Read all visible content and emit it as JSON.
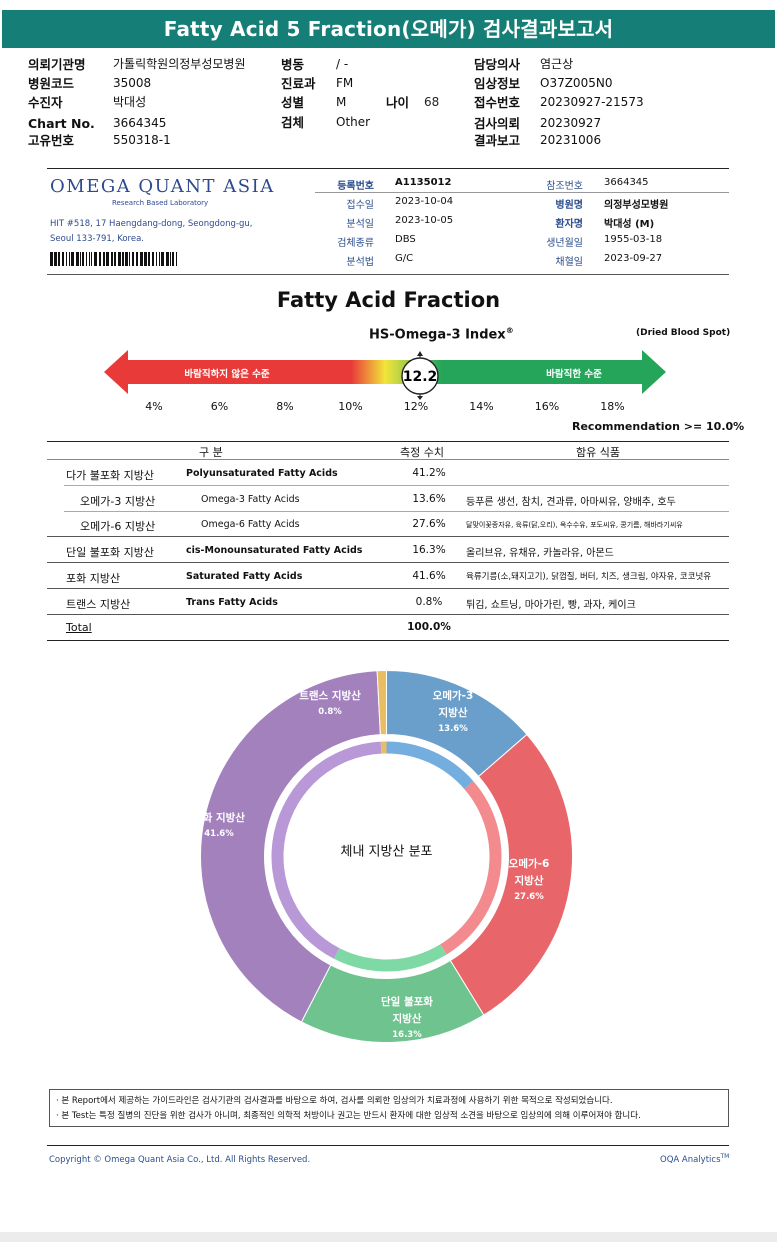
{
  "header": {
    "title": "Fatty Acid 5 Fraction(오메가) 검사결과보고서"
  },
  "patient_info": {
    "col1": [
      {
        "label": "의뢰기관명",
        "value": "가톨릭학원의정부성모병원"
      },
      {
        "label": "병원코드",
        "value": "35008"
      },
      {
        "label": "수진자",
        "value": "박대성"
      },
      {
        "label": "Chart No.",
        "value": "3664345"
      },
      {
        "label": "고유번호",
        "value": "550318-1"
      }
    ],
    "col2": [
      {
        "label": "병동",
        "value": "/ -"
      },
      {
        "label": "진료과",
        "value": "FM"
      },
      {
        "label": "성별",
        "value": "M"
      },
      {
        "label": "검체",
        "value": "Other"
      }
    ],
    "age": {
      "label": "나이",
      "value": "68"
    },
    "col3": [
      {
        "label": "담당의사",
        "value": "염근상"
      },
      {
        "label": "임상정보",
        "value": "O37Z005N0"
      },
      {
        "label": "접수번호",
        "value": "20230927-21573"
      },
      {
        "label": "검사의뢰",
        "value": "20230927"
      },
      {
        "label": "결과보고",
        "value": "20231006"
      }
    ]
  },
  "lab": {
    "logo": "OMEGA QUANT ASIA",
    "logo_sub": "Research Based Laboratory",
    "address1": "HIT #518, 17 Haengdang-dong, Seongdong-gu,",
    "address2": "Seoul 133-791, Korea."
  },
  "registration": {
    "left": [
      {
        "label": "등록번호",
        "value": "A1135012"
      },
      {
        "label": "접수일",
        "value": "2023-10-04"
      },
      {
        "label": "분석일",
        "value": "2023-10-05"
      },
      {
        "label": "검체종류",
        "value": "DBS"
      },
      {
        "label": "분석법",
        "value": "G/C"
      }
    ],
    "right": [
      {
        "label": "참조번호",
        "value": "3664345"
      },
      {
        "label": "병원명",
        "value": "의정부성모병원"
      },
      {
        "label": "환자명",
        "value": "박대성 (M)"
      },
      {
        "label": "생년월일",
        "value": "1955-03-18"
      },
      {
        "label": "채혈일",
        "value": "2023-09-27"
      }
    ]
  },
  "index": {
    "section_title": "Fatty Acid Fraction",
    "name": "HS-Omega-3 Index",
    "sup": "®",
    "sample_type": "(Dried Blood Spot)",
    "value": "12.2",
    "bad_label": "바람직하지 않은 수준",
    "good_label": "바람직한 수준",
    "scale": [
      "4%",
      "6%",
      "8%",
      "10%",
      "12%",
      "14%",
      "16%",
      "18%"
    ],
    "recommendation": "Recommendation  >= 10.0%",
    "colors": {
      "red": "#e93a3a",
      "yellow": "#f2e53a",
      "green": "#25a55a"
    }
  },
  "table": {
    "headers": [
      "구 분",
      "측정 수치",
      "함유 식품"
    ],
    "rows": [
      {
        "kr": "다가 불포화 지방산",
        "en": "Polyunsaturated Fatty Acids",
        "value": "41.2%",
        "food": ""
      },
      {
        "kr": "오메가-3 지방산",
        "en": "Omega-3 Fatty Acids",
        "value": "13.6%",
        "food": "등푸른 생선, 참치, 견과류, 아마씨유, 양배추, 호두"
      },
      {
        "kr": "오메가-6 지방산",
        "en": "Omega-6 Fatty Acids",
        "value": "27.6%",
        "food": "달맞이꽃종자유, 육류(닭,오리), 옥수수유, 포도씨유, 콩기름, 해바라기씨유"
      },
      {
        "kr": "단일 불포화 지방산",
        "en": "cis-Monounsaturated Fatty Acids",
        "value": "16.3%",
        "food": "올리브유, 유채유, 카놀라유, 아몬드"
      },
      {
        "kr": "포화 지방산",
        "en": "Saturated Fatty Acids",
        "value": "41.6%",
        "food": "육류기름(소,돼지고기), 닭껍질, 버터, 치즈, 생크림, 야자유, 코코넛유"
      },
      {
        "kr": "트랜스 지방산",
        "en": "Trans Fatty Acids",
        "value": "0.8%",
        "food": "튀김, 쇼트닝, 마아가린, 빵, 과자, 케이크"
      }
    ],
    "total_label": "Total",
    "total_value": "100.0%"
  },
  "chart_data": {
    "type": "pie",
    "title": "체내 지방산 분포",
    "categories": [
      "오메가-3 지방산",
      "오메가-6 지방산",
      "단일 불포화 지방산",
      "포화 지방산",
      "트랜스 지방산"
    ],
    "values": [
      13.6,
      27.6,
      16.3,
      41.6,
      0.8
    ],
    "labels": [
      "13.6%",
      "27.6%",
      "16.3%",
      "41.6%",
      "0.8%"
    ],
    "label_lines": [
      [
        "오메가-3",
        "지방산"
      ],
      [
        "오메가-6",
        "지방산"
      ],
      [
        "단일 불포화",
        "지방산"
      ],
      [
        "포화 지방산"
      ],
      [
        "트랜스 지방산"
      ]
    ],
    "colors": [
      "#6a9fcb",
      "#e8666a",
      "#6ec38f",
      "#a281bd",
      "#e8bd63"
    ],
    "inner_colors": [
      "#74aedf",
      "#f28a8e",
      "#7fd9a4",
      "#b898d6",
      "#e8bd63"
    ]
  },
  "notes": [
    "· 본 Report에서 제공하는 가이드라인은 검사기관의 검사결과를 바탕으로 하여, 검사를 의뢰한 임상의가 치료과정에 사용하기 위한 목적으로 작성되었습니다.",
    "· 본 Test는 특정 질병의 진단을 위한 검사가 아니며, 최종적인 의학적 처방이나 권고는 반드시 환자에 대한 임상적 소견을 바탕으로 임상의에 의해 이루어져야 합니다."
  ],
  "footer": {
    "copyright": "Copyright © Omega Quant Asia Co., Ltd.  All Rights Reserved.",
    "brand": "OQA Analytics",
    "brand_sup": "TM"
  }
}
